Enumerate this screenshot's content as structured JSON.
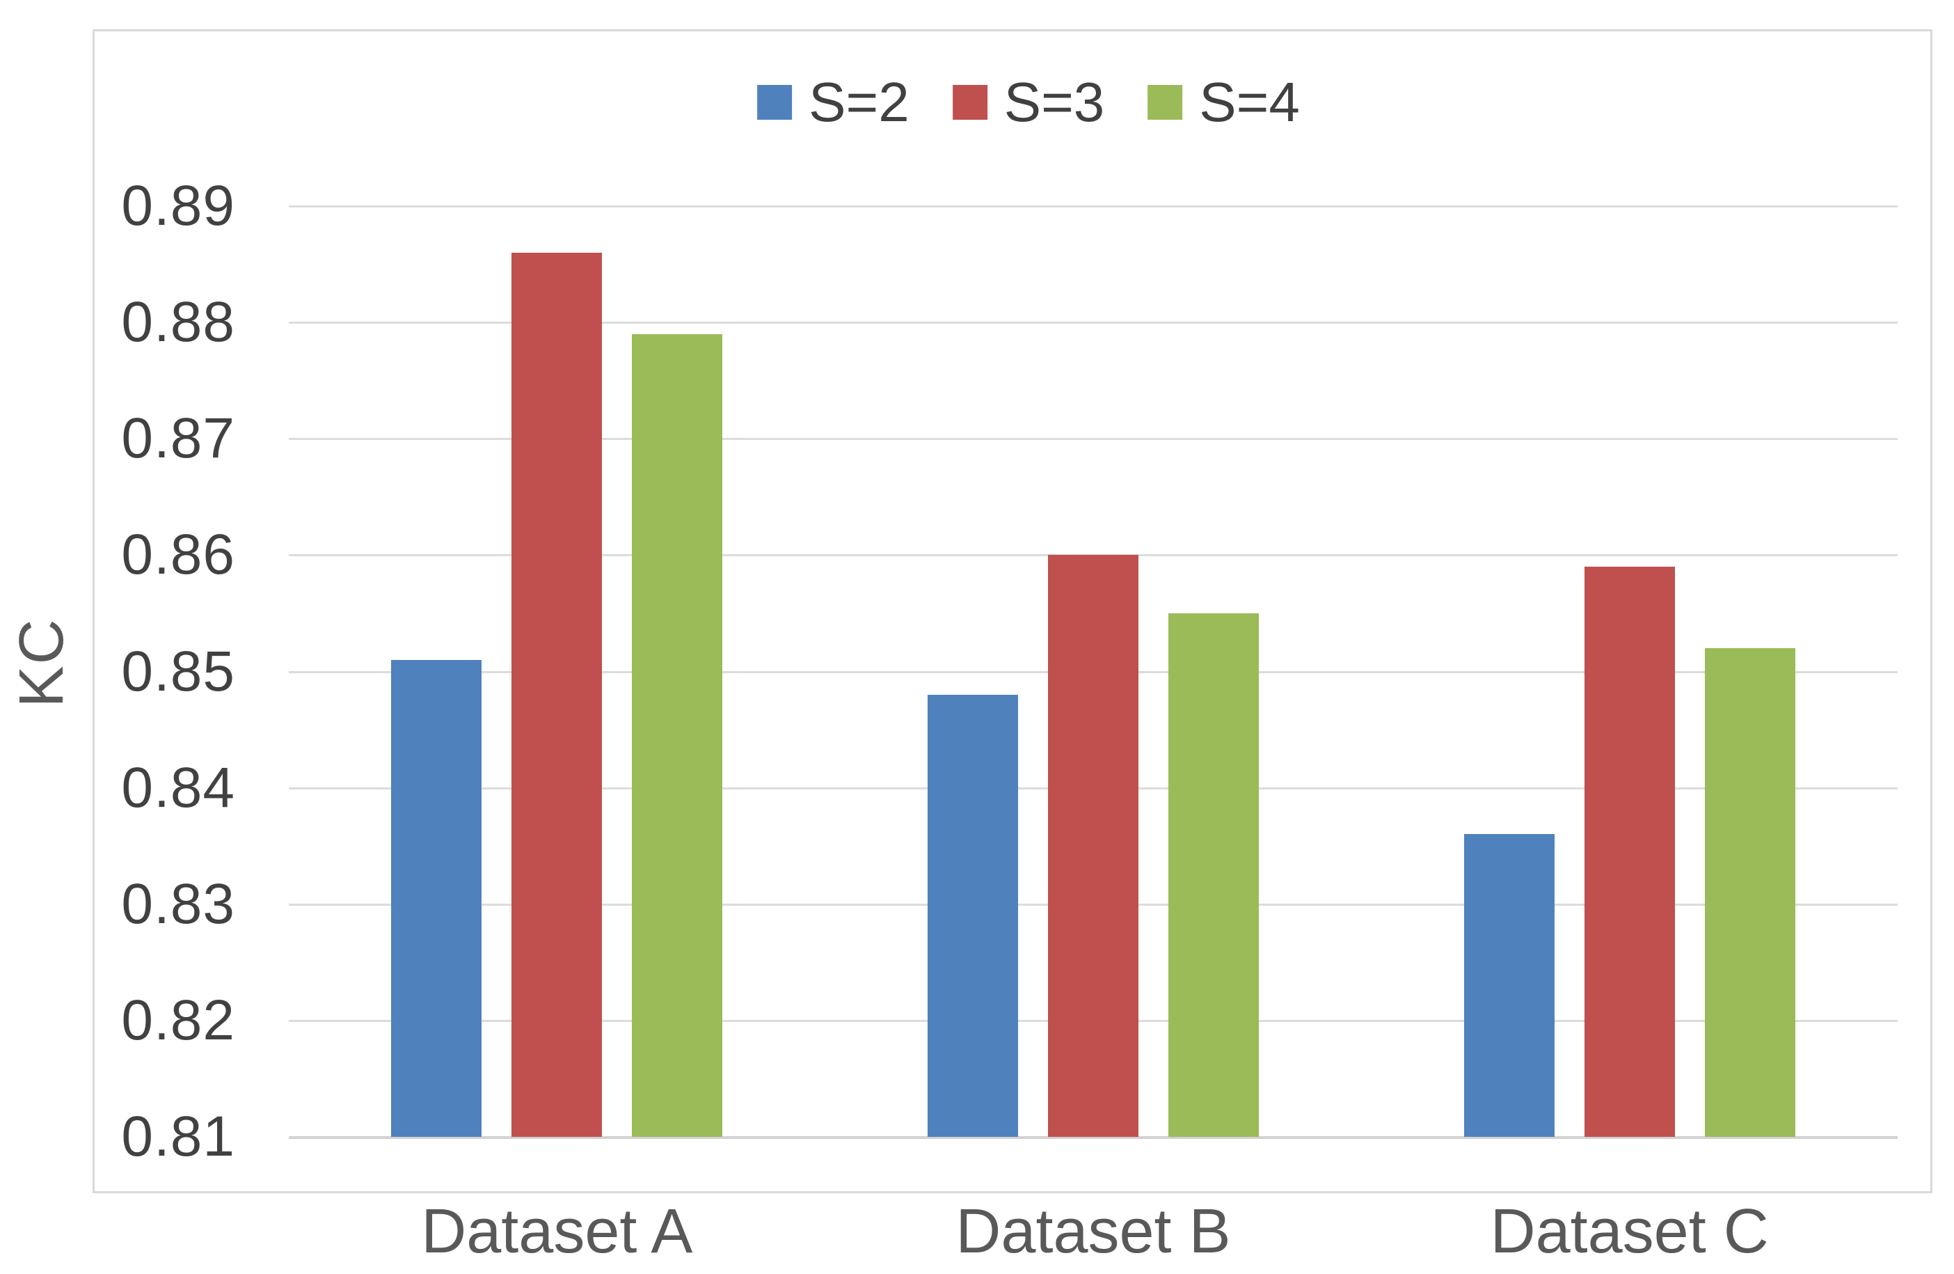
{
  "chart_data": {
    "type": "bar",
    "title": "",
    "categories": [
      "Dataset A",
      "Dataset B",
      "Dataset C"
    ],
    "series": [
      {
        "name": "S=2",
        "color": "#4F81BD",
        "values": [
          0.851,
          0.848,
          0.836
        ]
      },
      {
        "name": "S=3",
        "color": "#C0504D",
        "values": [
          0.886,
          0.86,
          0.859
        ]
      },
      {
        "name": "S=4",
        "color": "#9BBB59",
        "values": [
          0.879,
          0.855,
          0.852
        ]
      }
    ],
    "xlabel": "",
    "ylabel": "KC",
    "ylim": [
      0.81,
      0.89
    ],
    "ytick_step": 0.01,
    "yticks": [
      "0.89",
      "0.88",
      "0.87",
      "0.86",
      "0.85",
      "0.84",
      "0.83",
      "0.82",
      "0.81"
    ],
    "grid": true,
    "legend_position": "top-center",
    "colors": {
      "gridline": "#DCDCDC",
      "frame_border": "#D9D9D9",
      "tick_text": "#414141",
      "axis_text": "#595959"
    }
  }
}
